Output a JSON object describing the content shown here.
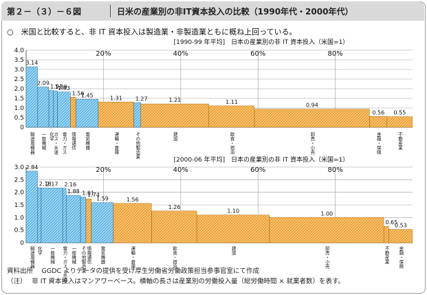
{
  "header": {
    "figure_code": "第２－（３）－６図",
    "title": "日米の産業別の非IT資本投入の比較（1990年代・2000年代）"
  },
  "lead": "○　米国と比較すると、非 IT 資本投入は製造業・非製造業ともに概ね上回っている。",
  "notes": {
    "source": "資料出所　 GGDC よりデータの提供を受け厚生労働省労働政策担当参事官室にて作成",
    "note": "（注）　 非 IT 資本投入はマンアワーベース。横軸の長さは産業別の労働投入量（総労働時間 × 就業者数）を表す。"
  },
  "colors": {
    "manufacturing": "#5ab4e6",
    "non_manufacturing": "#f2a535",
    "grid": "#9b9b9b"
  },
  "chart_data": [
    {
      "type": "bar",
      "title": "[1990-99 年平均]　日本の産業別の非 IT 資本投入（米国=1）",
      "x_ticks": [
        {
          "frac": 0.2,
          "label": "20%"
        },
        {
          "frac": 0.4,
          "label": "40%"
        },
        {
          "frac": 0.6,
          "label": "60%"
        },
        {
          "frac": 0.8,
          "label": "80%"
        }
      ],
      "ylim": [
        0,
        4.0
      ],
      "yticks": [
        {
          "v": 0,
          "label": "0"
        },
        {
          "v": 0.5,
          "label": "0.5"
        },
        {
          "v": 1.0,
          "label": "1.0"
        },
        {
          "v": 1.5,
          "label": "1.5"
        },
        {
          "v": 2.0,
          "label": "2.0"
        },
        {
          "v": 2.5,
          "label": "2.5"
        },
        {
          "v": 3.0,
          "label": "3.0"
        },
        {
          "v": 3.5,
          "label": "3.5"
        },
        {
          "v": 4.0,
          "label": "4.0"
        }
      ],
      "grid_y": true,
      "bars": [
        {
          "value": 3.14,
          "width": 0.03,
          "group": "manufacturing",
          "label": "3.14",
          "cat": "輸送用機器"
        },
        {
          "value": 2.09,
          "width": 0.029,
          "group": "manufacturing",
          "label": "2.09",
          "cat": "一般機械"
        },
        {
          "value": 1.91,
          "width": 0.012,
          "group": "manufacturing",
          "label": "1.91",
          "cat": "化学"
        },
        {
          "value": 1.89,
          "width": 0.01,
          "group": "manufacturing",
          "label": "1.89",
          "cat": "ガス・水道"
        },
        {
          "value": 1.83,
          "width": 0.034,
          "group": "manufacturing",
          "label": "1.83",
          "cat": "電力・ガス"
        },
        {
          "value": 1.56,
          "width": 0.014,
          "group": "non_manufacturing",
          "label": "1.56",
          "cat": "情報通信"
        },
        {
          "value": 1.45,
          "width": 0.058,
          "group": "manufacturing",
          "label": "1.45",
          "cat": "電気機器"
        },
        {
          "value": 1.31,
          "width": 0.092,
          "group": "non_manufacturing",
          "label": "1.31",
          "cat": "運輸・倉庫"
        },
        {
          "value": 1.27,
          "width": 0.018,
          "group": "manufacturing",
          "label": "1.27",
          "cat": "その他製造業"
        },
        {
          "value": 1.21,
          "width": 0.176,
          "group": "non_manufacturing",
          "label": "1.21",
          "cat": "建設"
        },
        {
          "value": 1.11,
          "width": 0.118,
          "group": "non_manufacturing",
          "label": "1.11",
          "cat": "飲食・宿泊"
        },
        {
          "value": 0.94,
          "width": 0.298,
          "group": "non_manufacturing",
          "label": "0.94",
          "cat": "卸売・小売"
        },
        {
          "value": 0.56,
          "width": 0.045,
          "group": "non_manufacturing",
          "label": "0.56",
          "cat": "金融・保険"
        },
        {
          "value": 0.55,
          "width": 0.066,
          "group": "non_manufacturing",
          "label": "0.55",
          "cat": "不動産業"
        }
      ]
    },
    {
      "type": "bar",
      "title": "[2000-06 年平均]　日本の産業別の非 IT 資本投入（米国=1）",
      "x_ticks": [
        {
          "frac": 0.2,
          "label": "20%"
        },
        {
          "frac": 0.4,
          "label": "40%"
        },
        {
          "frac": 0.6,
          "label": "60%"
        },
        {
          "frac": 0.8,
          "label": "80%"
        }
      ],
      "ylim": [
        0,
        3.0
      ],
      "yticks": [
        {
          "v": 0,
          "label": "0"
        },
        {
          "v": 0.5,
          "label": "0.5"
        },
        {
          "v": 1.0,
          "label": "1.0"
        },
        {
          "v": 1.5,
          "label": "1.5"
        },
        {
          "v": 2.0,
          "label": "2.0"
        },
        {
          "v": 2.5,
          "label": "2.5"
        },
        {
          "v": 3.0,
          "label": "3.0"
        }
      ],
      "grid_y": true,
      "bars": [
        {
          "value": 2.84,
          "width": 0.03,
          "group": "manufacturing",
          "label": "2.84",
          "cat": "輸送用機器"
        },
        {
          "value": 2.18,
          "width": 0.009,
          "group": "manufacturing",
          "label": "2.18",
          "cat": "化学"
        },
        {
          "value": 2.17,
          "width": 0.056,
          "group": "manufacturing",
          "label": "2.17",
          "cat": "一般機械"
        },
        {
          "value": 2.16,
          "width": 0.009,
          "group": "manufacturing",
          "label": "2.16",
          "cat": "電力・ガス・水道"
        },
        {
          "value": 1.88,
          "width": 0.037,
          "group": "manufacturing",
          "label": "1.88",
          "cat": "一般機械"
        },
        {
          "value": 1.81,
          "width": 0.014,
          "group": "manufacturing",
          "label": "1.81",
          "cat": "その他製造業"
        },
        {
          "value": 1.74,
          "width": 0.014,
          "group": "non_manufacturing",
          "label": "1.74",
          "cat": "情報通信"
        },
        {
          "value": 1.59,
          "width": 0.057,
          "group": "manufacturing",
          "label": "1.59",
          "cat": "電気機器"
        },
        {
          "value": 1.56,
          "width": 0.099,
          "group": "non_manufacturing",
          "label": "1.56",
          "cat": "運輸・倉庫"
        },
        {
          "value": 1.26,
          "width": 0.117,
          "group": "non_manufacturing",
          "label": "1.26",
          "cat": "飲食・宿泊"
        },
        {
          "value": 1.1,
          "width": 0.188,
          "group": "non_manufacturing",
          "label": "1.10",
          "cat": "建設"
        },
        {
          "value": 1.0,
          "width": 0.296,
          "group": "non_manufacturing",
          "label": "1.00",
          "cat": "卸売・小売"
        },
        {
          "value": 0.65,
          "width": 0.013,
          "group": "non_manufacturing",
          "label": "0.65",
          "cat": "不動産業"
        },
        {
          "value": 0.53,
          "width": 0.061,
          "group": "non_manufacturing",
          "label": "0.53",
          "cat": "金融・保険"
        }
      ]
    }
  ]
}
